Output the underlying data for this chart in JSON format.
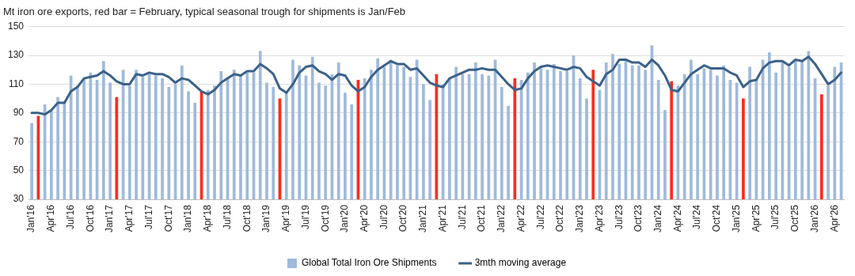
{
  "chart_data": {
    "type": "bar",
    "title": "Mt iron ore exports, red bar = February, typical seasonal trough for shipments is Jan/Feb",
    "categories": [
      "Jan'16",
      null,
      null,
      "Apr'16",
      null,
      null,
      "Jul'16",
      null,
      null,
      "Oct'16",
      null,
      null,
      "Jan'17",
      null,
      null,
      "Apr'17",
      null,
      null,
      "Jul'17",
      null,
      null,
      "Oct'17",
      null,
      null,
      "Jan'18",
      null,
      null,
      "Apr'18",
      null,
      null,
      "Jul'18",
      null,
      null,
      "Oct'18",
      null,
      null,
      "Jan'19",
      null,
      null,
      "Apr'19",
      null,
      null,
      "Jul'19",
      null,
      null,
      "Oct'19",
      null,
      null,
      "Jan'20",
      null,
      null,
      "Apr'20",
      null,
      null,
      "Jul'20",
      null,
      null,
      "Oct'20",
      null,
      null,
      "Jan'21",
      null,
      null,
      "Apr'21",
      null,
      null,
      "Jul'21",
      null,
      null,
      "Oct'21",
      null,
      null,
      "Jan'22",
      null,
      null,
      "Apr'22",
      null,
      null,
      "Jul'22",
      null,
      null,
      "Oct'22",
      null,
      null,
      "Jan'23",
      null,
      null,
      "Apr'23",
      null,
      null,
      "Jul'23",
      null,
      null,
      "Oct'23",
      null,
      null,
      "Jan'24",
      null,
      null,
      "Apr'24",
      null,
      null,
      "Jul'24",
      null,
      null,
      "Oct'24",
      null,
      null,
      "Jan'25",
      null,
      null,
      "Apr'25",
      null,
      null,
      "Jul'25",
      null,
      null,
      "Oct'25",
      null,
      null,
      "Jan'26",
      null,
      null,
      "Apr'26",
      null
    ],
    "series": [
      {
        "name": "Global Total Iron Ore Shipments",
        "color": "#9fbadb",
        "values": [
          83,
          88,
          96,
          92,
          101,
          98,
          116,
          109,
          114,
          118,
          113,
          126,
          111,
          101,
          120,
          109,
          120,
          115,
          117,
          116,
          114,
          108,
          110,
          123,
          105,
          97,
          105,
          106,
          109,
          119,
          114,
          120,
          116,
          118,
          118,
          133,
          111,
          108,
          100,
          104,
          127,
          123,
          116,
          129,
          111,
          109,
          117,
          125,
          104,
          96,
          113,
          114,
          120,
          128,
          122,
          127,
          123,
          122,
          115,
          127,
          110,
          99,
          117,
          110,
          114,
          122,
          117,
          117,
          125,
          117,
          116,
          127,
          108,
          95,
          114,
          113,
          118,
          125,
          121,
          120,
          124,
          119,
          119,
          130,
          114,
          100,
          120,
          106,
          125,
          131,
          124,
          126,
          123,
          123,
          120,
          137,
          113,
          92,
          112,
          109,
          117,
          127,
          117,
          121,
          120,
          116,
          123,
          113,
          111,
          100,
          122,
          113,
          127,
          132,
          118,
          125,
          122,
          127,
          126,
          133,
          114,
          103,
          109,
          122,
          125
        ],
        "colors": [
          "#9fbadb",
          "#ff2b1c",
          "#9fbadb",
          "#9fbadb",
          "#9fbadb",
          "#9fbadb",
          "#9fbadb",
          "#9fbadb",
          "#9fbadb",
          "#9fbadb",
          "#9fbadb",
          "#9fbadb",
          "#9fbadb",
          "#ff2b1c",
          "#9fbadb",
          "#9fbadb",
          "#9fbadb",
          "#9fbadb",
          "#9fbadb",
          "#9fbadb",
          "#9fbadb",
          "#9fbadb",
          "#9fbadb",
          "#9fbadb",
          "#9fbadb",
          "#9fbadb",
          "#ff2b1c",
          "#9fbadb",
          "#9fbadb",
          "#9fbadb",
          "#9fbadb",
          "#9fbadb",
          "#9fbadb",
          "#9fbadb",
          "#9fbadb",
          "#9fbadb",
          "#9fbadb",
          "#9fbadb",
          "#ff2b1c",
          "#9fbadb",
          "#9fbadb",
          "#9fbadb",
          "#9fbadb",
          "#9fbadb",
          "#9fbadb",
          "#9fbadb",
          "#9fbadb",
          "#9fbadb",
          "#9fbadb",
          "#9fbadb",
          "#ff2b1c",
          "#9fbadb",
          "#9fbadb",
          "#9fbadb",
          "#9fbadb",
          "#9fbadb",
          "#9fbadb",
          "#9fbadb",
          "#9fbadb",
          "#9fbadb",
          "#9fbadb",
          "#9fbadb",
          "#ff2b1c",
          "#9fbadb",
          "#9fbadb",
          "#9fbadb",
          "#9fbadb",
          "#9fbadb",
          "#9fbadb",
          "#9fbadb",
          "#9fbadb",
          "#9fbadb",
          "#9fbadb",
          "#9fbadb",
          "#ff2b1c",
          "#9fbadb",
          "#9fbadb",
          "#9fbadb",
          "#9fbadb",
          "#9fbadb",
          "#9fbadb",
          "#9fbadb",
          "#9fbadb",
          "#9fbadb",
          "#9fbadb",
          "#9fbadb",
          "#ff2b1c",
          "#9fbadb",
          "#9fbadb",
          "#9fbadb",
          "#9fbadb",
          "#9fbadb",
          "#9fbadb",
          "#9fbadb",
          "#9fbadb",
          "#9fbadb",
          "#9fbadb",
          "#9fbadb",
          "#ff2b1c",
          "#9fbadb",
          "#9fbadb",
          "#9fbadb",
          "#9fbadb",
          "#9fbadb",
          "#9fbadb",
          "#9fbadb",
          "#9fbadb",
          "#9fbadb",
          "#9fbadb",
          "#ff2b1c",
          "#9fbadb",
          "#9fbadb",
          "#9fbadb",
          "#9fbadb",
          "#9fbadb",
          "#9fbadb",
          "#9fbadb",
          "#9fbadb",
          "#9fbadb",
          "#9fbadb",
          "#9fbadb",
          "#ff2b1c",
          "#9fbadb",
          "#9fbadb",
          "#9fbadb"
        ]
      },
      {
        "name": "3mth moving average",
        "type": "line",
        "color": "#3b6189",
        "values": [
          90,
          90,
          89,
          92,
          97,
          97,
          105,
          108,
          114,
          115,
          116,
          119,
          116,
          112,
          110,
          110,
          117,
          116,
          118,
          117,
          117,
          115,
          111,
          114,
          113,
          109,
          105,
          103,
          106,
          111,
          114,
          117,
          116,
          119,
          119,
          124,
          121,
          117,
          107,
          104,
          110,
          118,
          122,
          123,
          119,
          117,
          113,
          117,
          116,
          109,
          105,
          108,
          115,
          120,
          123,
          126,
          124,
          124,
          120,
          121,
          116,
          111,
          109,
          108,
          114,
          116,
          118,
          120,
          120,
          121,
          120,
          120,
          115,
          110,
          106,
          107,
          114,
          119,
          122,
          123,
          122,
          121,
          120,
          122,
          121,
          115,
          112,
          109,
          117,
          120,
          127,
          127,
          125,
          125,
          122,
          127,
          123,
          116,
          106,
          105,
          111,
          117,
          120,
          123,
          121,
          121,
          121,
          118,
          116,
          108,
          112,
          113,
          121,
          125,
          126,
          126,
          123,
          127,
          126,
          129,
          124,
          117,
          110,
          113,
          118
        ]
      }
    ],
    "ylim": [
      30,
      150
    ],
    "yticks": [
      30,
      50,
      70,
      90,
      110,
      130,
      150
    ],
    "grid": "y",
    "legend": "bottom",
    "marker": "none",
    "line_style": "solid"
  }
}
